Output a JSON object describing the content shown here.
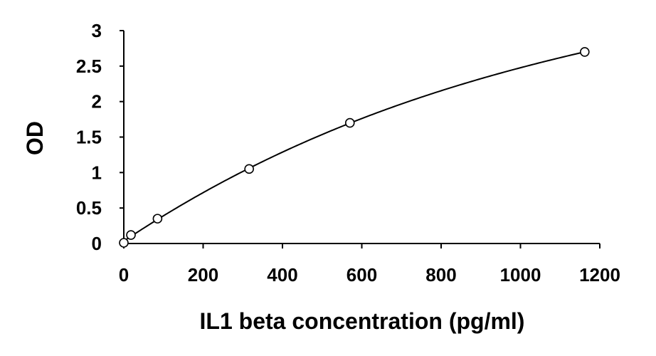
{
  "chart_data": {
    "type": "scatter",
    "title": "",
    "xlabel": "IL1 beta concentration (pg/ml)",
    "ylabel": "OD",
    "xlim": [
      0,
      1200
    ],
    "ylim": [
      0,
      3
    ],
    "x_ticks": [
      0,
      200,
      400,
      600,
      800,
      1000,
      1200
    ],
    "y_ticks": [
      0,
      0.5,
      1,
      1.5,
      2,
      2.5,
      3
    ],
    "x_tick_labels": [
      "0",
      "200",
      "400",
      "600",
      "800",
      "1000",
      "1200"
    ],
    "y_tick_labels": [
      "0",
      "0.5",
      "1",
      "1.5",
      "2",
      "2.5",
      "3"
    ],
    "grid": false,
    "legend": "none",
    "marker": "open-circle",
    "trendline": "smooth-polynomial",
    "series": [
      {
        "x": [
          0,
          18,
          85,
          316,
          570,
          1162
        ],
        "y": [
          0.01,
          0.12,
          0.35,
          1.05,
          1.7,
          2.7
        ]
      }
    ],
    "colors": {
      "line": "#000000",
      "marker": "#000000",
      "text": "#000000"
    }
  }
}
